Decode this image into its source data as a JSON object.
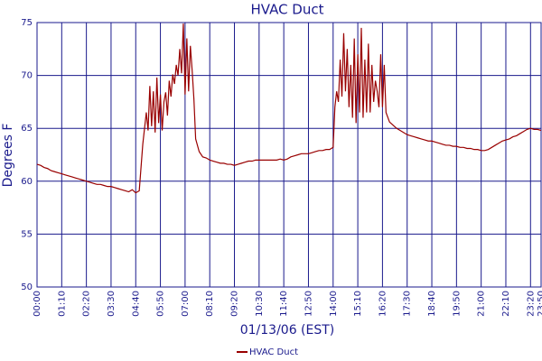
{
  "chart_data": {
    "type": "line",
    "title": "HVAC Duct",
    "xlabel": "01/13/06 (EST)",
    "ylabel": "Degrees F",
    "xlim": [
      "00:00",
      "23:50"
    ],
    "xticks": [
      "00:00",
      "01:10",
      "02:20",
      "03:30",
      "04:40",
      "05:50",
      "07:00",
      "08:10",
      "09:20",
      "10:30",
      "11:40",
      "12:50",
      "14:00",
      "15:10",
      "16:20",
      "17:30",
      "18:40",
      "19:50",
      "21:00",
      "22:10",
      "23:20",
      "23:50"
    ],
    "ylim": [
      50,
      75
    ],
    "yticks": [
      50,
      55,
      60,
      65,
      70,
      75
    ],
    "grid": true,
    "x": [
      "00:00",
      "00:10",
      "00:20",
      "00:30",
      "00:40",
      "00:50",
      "01:00",
      "01:10",
      "01:20",
      "01:30",
      "01:40",
      "01:50",
      "02:00",
      "02:10",
      "02:20",
      "02:30",
      "02:40",
      "02:50",
      "03:00",
      "03:10",
      "03:20",
      "03:30",
      "03:40",
      "03:50",
      "04:00",
      "04:10",
      "04:20",
      "04:30",
      "04:40",
      "04:50",
      "05:00",
      "05:05",
      "05:10",
      "05:15",
      "05:20",
      "05:25",
      "05:30",
      "05:35",
      "05:40",
      "05:45",
      "05:50",
      "05:55",
      "06:00",
      "06:05",
      "06:10",
      "06:15",
      "06:20",
      "06:25",
      "06:30",
      "06:35",
      "06:40",
      "06:45",
      "06:50",
      "06:55",
      "07:00",
      "07:05",
      "07:10",
      "07:15",
      "07:20",
      "07:25",
      "07:30",
      "07:40",
      "07:50",
      "08:00",
      "08:10",
      "08:20",
      "08:30",
      "08:40",
      "08:50",
      "09:00",
      "09:10",
      "09:20",
      "09:30",
      "09:40",
      "09:50",
      "10:00",
      "10:10",
      "10:20",
      "10:30",
      "10:40",
      "10:50",
      "11:00",
      "11:10",
      "11:20",
      "11:30",
      "11:40",
      "11:50",
      "12:00",
      "12:10",
      "12:20",
      "12:30",
      "12:40",
      "12:50",
      "13:00",
      "13:10",
      "13:20",
      "13:30",
      "13:40",
      "13:50",
      "14:00",
      "14:05",
      "14:10",
      "14:15",
      "14:20",
      "14:25",
      "14:30",
      "14:35",
      "14:40",
      "14:45",
      "14:50",
      "14:55",
      "15:00",
      "15:05",
      "15:10",
      "15:15",
      "15:20",
      "15:25",
      "15:30",
      "15:35",
      "15:40",
      "15:45",
      "15:50",
      "15:55",
      "16:00",
      "16:05",
      "16:10",
      "16:15",
      "16:20",
      "16:25",
      "16:30",
      "16:40",
      "16:50",
      "17:00",
      "17:10",
      "17:20",
      "17:30",
      "17:40",
      "17:50",
      "18:00",
      "18:10",
      "18:20",
      "18:30",
      "18:40",
      "18:50",
      "19:00",
      "19:10",
      "19:20",
      "19:30",
      "19:40",
      "19:50",
      "20:00",
      "20:10",
      "20:20",
      "20:30",
      "20:40",
      "20:50",
      "21:00",
      "21:10",
      "21:20",
      "21:30",
      "21:40",
      "21:50",
      "22:00",
      "22:10",
      "22:20",
      "22:30",
      "22:40",
      "22:50",
      "23:00",
      "23:10",
      "23:20",
      "23:30",
      "23:40",
      "23:50"
    ],
    "series": [
      {
        "name": "HVAC Duct",
        "color": "#990000",
        "values": [
          61.6,
          61.5,
          61.3,
          61.2,
          61.0,
          60.9,
          60.8,
          60.7,
          60.6,
          60.5,
          60.4,
          60.3,
          60.2,
          60.1,
          60.0,
          59.9,
          59.8,
          59.7,
          59.7,
          59.6,
          59.5,
          59.5,
          59.4,
          59.3,
          59.2,
          59.1,
          59.0,
          59.2,
          58.9,
          59.1,
          63.5,
          65.0,
          66.5,
          64.8,
          69.0,
          65.2,
          68.5,
          64.6,
          69.8,
          65.5,
          68.2,
          64.8,
          67.5,
          68.4,
          66.2,
          69.5,
          68.0,
          70.1,
          69.2,
          71.0,
          70.0,
          72.5,
          70.2,
          74.9,
          68.2,
          73.5,
          68.5,
          72.8,
          70.5,
          67.8,
          64.0,
          62.8,
          62.3,
          62.2,
          62.0,
          61.9,
          61.8,
          61.7,
          61.7,
          61.6,
          61.6,
          61.5,
          61.6,
          61.7,
          61.8,
          61.9,
          61.9,
          62.0,
          62.0,
          62.0,
          62.0,
          62.0,
          62.0,
          62.0,
          62.1,
          62.0,
          62.1,
          62.3,
          62.4,
          62.5,
          62.6,
          62.6,
          62.6,
          62.7,
          62.8,
          62.9,
          62.9,
          63.0,
          63.0,
          63.2,
          67.0,
          68.5,
          67.5,
          71.5,
          68.0,
          74.0,
          68.5,
          72.5,
          67.0,
          71.0,
          66.0,
          73.5,
          65.5,
          72.0,
          66.5,
          74.5,
          66.0,
          71.5,
          66.5,
          73.0,
          66.5,
          71.0,
          67.5,
          69.5,
          68.5,
          67.0,
          72.0,
          67.0,
          71.0,
          66.5,
          65.6,
          65.3,
          65.0,
          64.8,
          64.6,
          64.4,
          64.3,
          64.2,
          64.1,
          64.0,
          63.9,
          63.8,
          63.8,
          63.7,
          63.6,
          63.5,
          63.4,
          63.4,
          63.3,
          63.3,
          63.2,
          63.2,
          63.1,
          63.1,
          63.0,
          63.0,
          62.9,
          62.9,
          63.0,
          63.2,
          63.4,
          63.6,
          63.8,
          63.9,
          64.0,
          64.2,
          64.3,
          64.5,
          64.7,
          64.9,
          65.0,
          64.9,
          64.9,
          64.8
        ]
      }
    ]
  }
}
